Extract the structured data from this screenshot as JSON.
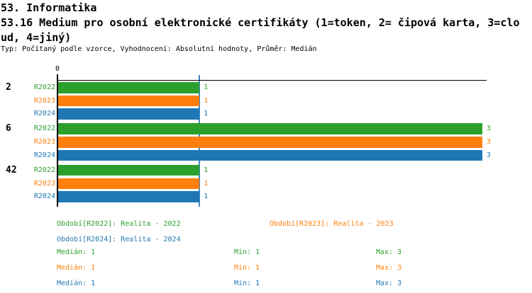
{
  "header": {
    "section_title": "53. Informatika",
    "question_title_line1": "53.16 Medium pro osobní elektronické certifikáty (1=token, 2= čipová karta, 3=clo",
    "question_title_line2": "ud, 4=jiný)",
    "meta": "Typ: Počítaný podle vzorce, Vyhodnocení: Absolutní hodnoty, Průměr: Medián"
  },
  "colors": {
    "r2022": "#2ca02c",
    "r2023": "#ff7f0e",
    "r2024": "#1f77b4",
    "axis": "#000000",
    "median_line": "#3d89c9"
  },
  "chart_data": {
    "type": "bar",
    "orientation": "horizontal",
    "title": "53.16 Medium pro osobní elektronické certifikáty (1=token, 2= čipová karta, 3=cloud, 4=jiný)",
    "series": [
      {
        "name": "R2022",
        "color": "#2ca02c"
      },
      {
        "name": "R2023",
        "color": "#ff7f0e"
      },
      {
        "name": "R2024",
        "color": "#1f77b4"
      }
    ],
    "groups": [
      {
        "label": "2",
        "values": [
          1,
          1,
          1
        ]
      },
      {
        "label": "6",
        "values": [
          3,
          3,
          3
        ]
      },
      {
        "label": "42",
        "values": [
          1,
          1,
          1
        ]
      }
    ],
    "xlim": [
      0,
      3
    ],
    "x_ticks": [
      {
        "value": 0,
        "label": "0"
      }
    ],
    "reference_line": {
      "value": 1,
      "meaning": "Medián"
    },
    "grid": false,
    "legend_position": "bottom"
  },
  "legend": {
    "items": [
      {
        "label": "Období[R2022]: Realita - 2022",
        "color": "#2ca02c",
        "row": 0,
        "col": 0
      },
      {
        "label": "Období[R2023]: Realita - 2023",
        "color": "#ff7f0e",
        "row": 0,
        "col": 1
      },
      {
        "label": "Období[R2024]: Realita - 2024",
        "color": "#1f77b4",
        "row": 1,
        "col": 0
      }
    ]
  },
  "stats": {
    "rows": [
      {
        "series": "R2022",
        "color": "#2ca02c",
        "median": "Medián: 1",
        "min": "Min: 1",
        "max": "Max: 3"
      },
      {
        "series": "R2023",
        "color": "#ff7f0e",
        "median": "Medián: 1",
        "min": "Min: 1",
        "max": "Max: 3"
      },
      {
        "series": "R2024",
        "color": "#1f77b4",
        "median": "Medián: 1",
        "min": "Min: 1",
        "max": "Max: 3"
      }
    ]
  }
}
